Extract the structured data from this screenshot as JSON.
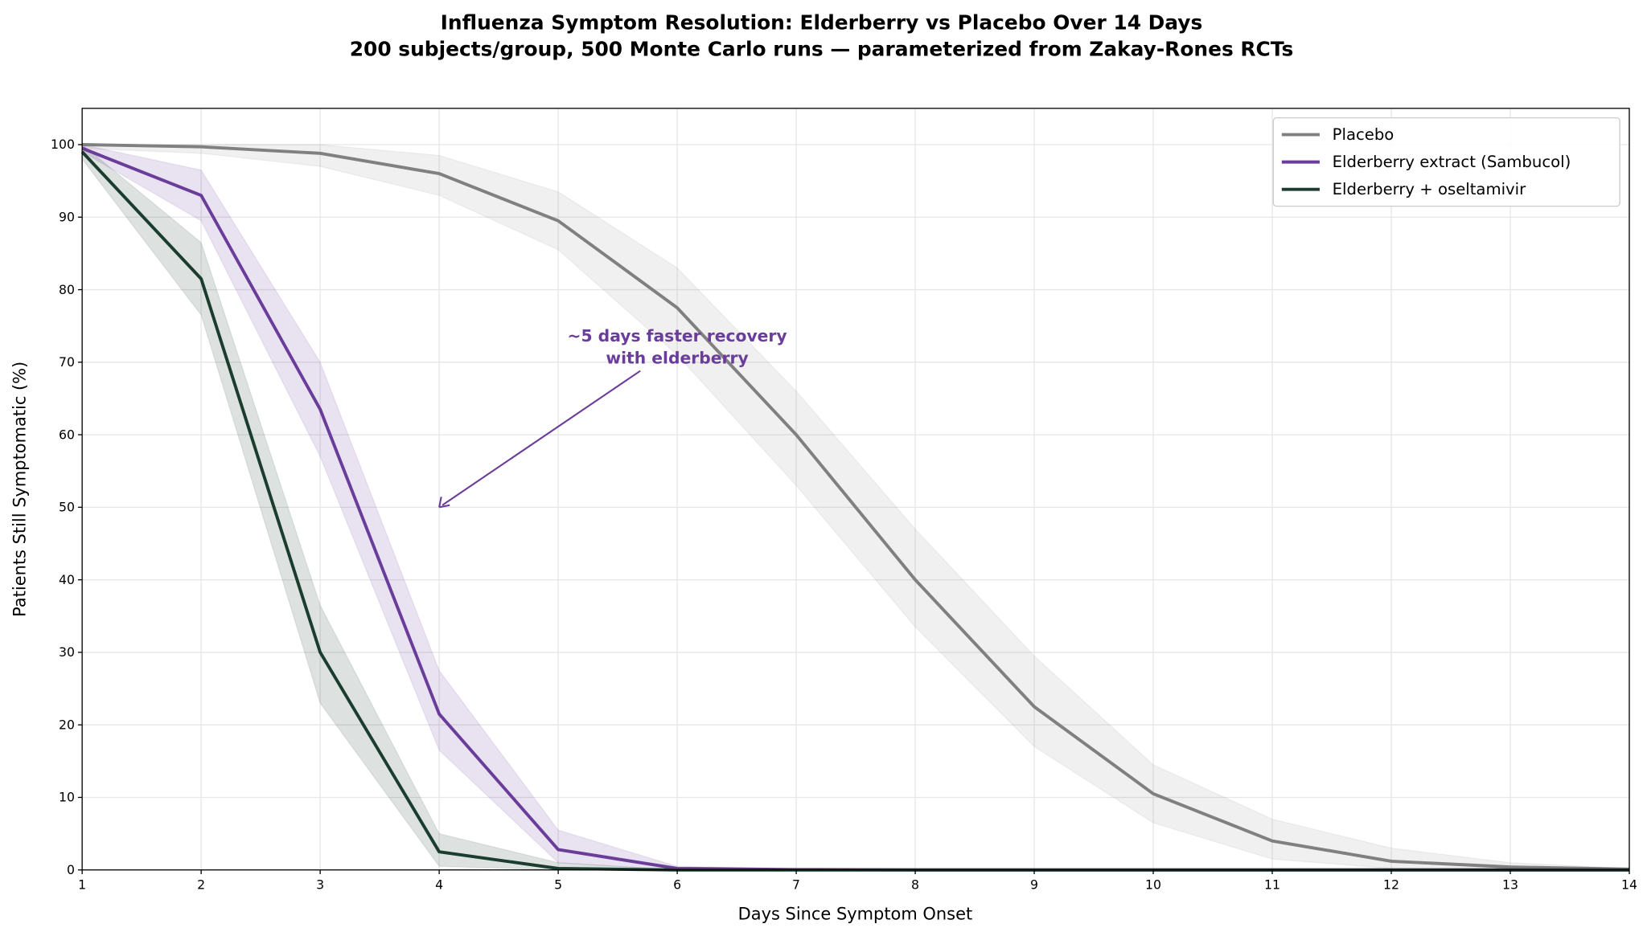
{
  "chart_data": {
    "type": "line",
    "title": "Influenza Symptom Resolution: Elderberry vs Placebo Over 14 Days",
    "subtitle": "200 subjects/group, 500 Monte Carlo runs — parameterized from Zakay-Rones RCTs",
    "xlabel": "Days Since Symptom Onset",
    "ylabel": "Patients Still Symptomatic (%)",
    "xlim": [
      1,
      14
    ],
    "ylim": [
      0,
      105
    ],
    "xticks": [
      1,
      2,
      3,
      4,
      5,
      6,
      7,
      8,
      9,
      10,
      11,
      12,
      13,
      14
    ],
    "yticks": [
      0,
      10,
      20,
      30,
      40,
      50,
      60,
      70,
      80,
      90,
      100
    ],
    "grid": true,
    "legend_position": "top-right",
    "x": [
      1,
      2,
      3,
      4,
      5,
      6,
      7,
      8,
      9,
      10,
      11,
      12,
      13,
      14
    ],
    "series": [
      {
        "name": "Placebo",
        "color": "#808080",
        "values": [
          100,
          99.7,
          98.8,
          96,
          89.5,
          77.5,
          60,
          40,
          22.5,
          10.5,
          4,
          1.2,
          0.4,
          0.1
        ],
        "lower": [
          99.5,
          98.8,
          97,
          93,
          85.5,
          71,
          53,
          33.5,
          17,
          6.5,
          1.5,
          0.2,
          0,
          0
        ],
        "upper": [
          100,
          100,
          100,
          98.5,
          93.5,
          83,
          66,
          47,
          29.5,
          14.5,
          7,
          3,
          1,
          0.2
        ]
      },
      {
        "name": "Elderberry extract (Sambucol)",
        "color": "#6a3d9a",
        "values": [
          99.5,
          93,
          63.5,
          21.5,
          2.8,
          0.2,
          0.05,
          0,
          0,
          0,
          0,
          0,
          0,
          0
        ],
        "lower": [
          99,
          89.5,
          57,
          16.5,
          1,
          0,
          0,
          0,
          0,
          0,
          0,
          0,
          0,
          0
        ],
        "upper": [
          100,
          96.5,
          70,
          27.5,
          5.5,
          0.5,
          0.1,
          0,
          0,
          0,
          0,
          0,
          0,
          0
        ]
      },
      {
        "name": "Elderberry + oseltamivir",
        "color": "#1b3d2f",
        "values": [
          99,
          81.5,
          30,
          2.5,
          0.2,
          0,
          0,
          0,
          0,
          0,
          0,
          0,
          0,
          0
        ],
        "lower": [
          98,
          76.5,
          23,
          0.5,
          0,
          0,
          0,
          0,
          0,
          0,
          0,
          0,
          0,
          0
        ],
        "upper": [
          100,
          86.5,
          36.5,
          5,
          1,
          0,
          0,
          0,
          0,
          0,
          0,
          0,
          0,
          0
        ]
      }
    ],
    "annotation": {
      "lines": [
        "~5 days faster recovery",
        "with elderberry"
      ],
      "text_x": 6,
      "text_y": 72,
      "arrow_to": [
        4,
        50
      ],
      "color": "#6a3d9a"
    }
  }
}
